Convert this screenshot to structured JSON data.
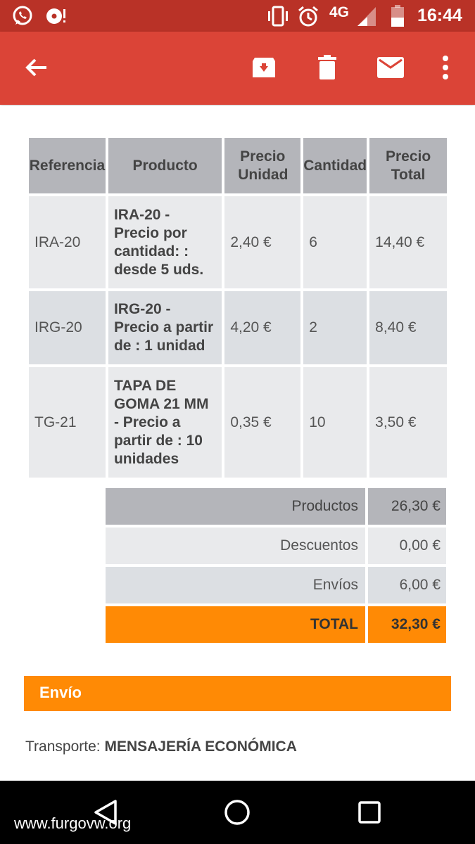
{
  "status_bar": {
    "network": "4G",
    "time": "16:44"
  },
  "app_bar": {
    "back_icon": "arrow-back-icon",
    "actions": [
      "archive-icon",
      "delete-icon",
      "mail-icon",
      "more-vert-icon"
    ]
  },
  "order_table": {
    "headers": [
      "Referencia",
      "Producto",
      "Precio Unidad",
      "Cantidad",
      "Precio Total"
    ],
    "rows": [
      {
        "ref": "IRA-20",
        "product": "IRA-20 - Precio por cantidad: : desde 5 uds.",
        "unit_price": "2,40 €",
        "quantity": "6",
        "total": "14,40 €"
      },
      {
        "ref": "IRG-20",
        "product": "IRG-20 - Precio a partir de : 1 unidad",
        "unit_price": "4,20 €",
        "quantity": "2",
        "total": "8,40 €"
      },
      {
        "ref": "TG-21",
        "product": "TAPA DE GOMA 21 MM - Precio a partir de : 10 unidades",
        "unit_price": "0,35 €",
        "quantity": "10",
        "total": "3,50 €"
      }
    ]
  },
  "totals": [
    {
      "label": "Productos",
      "value": "26,30 €"
    },
    {
      "label": "Descuentos",
      "value": "0,00 €"
    },
    {
      "label": "Envíos",
      "value": "6,00 €"
    },
    {
      "label": "TOTAL",
      "value": "32,30 €"
    }
  ],
  "shipping": {
    "section_title": "Envío",
    "transport_label": "Transporte:",
    "transport_value": "MENSAJERÍA ECONÓMICA"
  },
  "watermark": "www.furgovw.org",
  "colors": {
    "status_bar": "#b93227",
    "app_bar": "#db4437",
    "accent_orange": "#ff8a05",
    "header_gray": "#b4b5ba"
  }
}
